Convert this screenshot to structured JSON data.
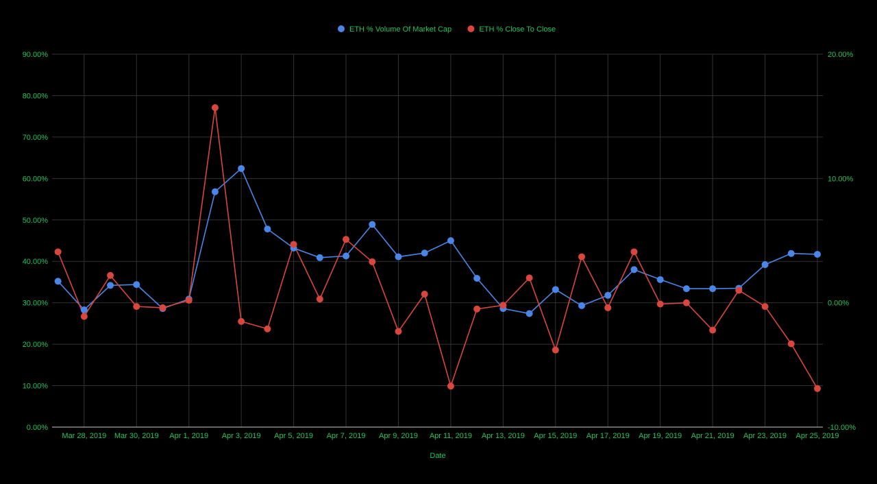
{
  "chart_data": {
    "type": "line",
    "title": "",
    "xlabel": "Date",
    "x": [
      "Mar 27, 2019",
      "Mar 28, 2019",
      "Mar 29, 2019",
      "Mar 30, 2019",
      "Mar 31, 2019",
      "Apr 1, 2019",
      "Apr 2, 2019",
      "Apr 3, 2019",
      "Apr 4, 2019",
      "Apr 5, 2019",
      "Apr 6, 2019",
      "Apr 7, 2019",
      "Apr 8, 2019",
      "Apr 9, 2019",
      "Apr 10, 2019",
      "Apr 11, 2019",
      "Apr 12, 2019",
      "Apr 13, 2019",
      "Apr 14, 2019",
      "Apr 15, 2019",
      "Apr 16, 2019",
      "Apr 17, 2019",
      "Apr 18, 2019",
      "Apr 19, 2019",
      "Apr 20, 2019",
      "Apr 21, 2019",
      "Apr 22, 2019",
      "Apr 23, 2019",
      "Apr 24, 2019",
      "Apr 25, 2019"
    ],
    "x_tick_labels": [
      "Mar 28, 2019",
      "Mar 30, 2019",
      "Apr 1, 2019",
      "Apr 3, 2019",
      "Apr 5, 2019",
      "Apr 7, 2019",
      "Apr 9, 2019",
      "Apr 11, 2019",
      "Apr 13, 2019",
      "Apr 15, 2019",
      "Apr 17, 2019",
      "Apr 19, 2019",
      "Apr 21, 2019",
      "Apr 23, 2019",
      "Apr 25, 2019"
    ],
    "y_left": {
      "ylim": [
        0,
        90
      ],
      "ticks": [
        0,
        10,
        20,
        30,
        40,
        50,
        60,
        70,
        80,
        90
      ],
      "tick_labels": [
        "0.00%",
        "10.00%",
        "20.00%",
        "30.00%",
        "40.00%",
        "50.00%",
        "60.00%",
        "70.00%",
        "80.00%",
        "90.00%"
      ]
    },
    "y_right": {
      "ylim": [
        -10,
        20
      ],
      "ticks": [
        -10,
        0,
        10,
        20
      ],
      "tick_labels": [
        "-10.00%",
        "0.00%",
        "10.00%",
        "20.00%"
      ]
    },
    "series": [
      {
        "name": "ETH % Volume Of Market Cap",
        "axis": "left",
        "color": "#4a86e8",
        "values": [
          35.2,
          28.3,
          34.2,
          34.4,
          28.6,
          30.9,
          56.8,
          62.4,
          47.8,
          43.2,
          40.9,
          41.3,
          48.9,
          41.1,
          42.0,
          45.0,
          35.9,
          28.6,
          27.4,
          33.2,
          29.3,
          31.8,
          38.0,
          35.6,
          33.4,
          33.4,
          33.5,
          39.2,
          41.9,
          41.7
        ]
      },
      {
        "name": "ETH % Close To Close",
        "axis": "right",
        "color": "#d9463e",
        "values": [
          4.1,
          -1.1,
          2.2,
          -0.3,
          -0.4,
          0.2,
          15.7,
          -1.5,
          -2.1,
          4.7,
          0.3,
          5.1,
          3.3,
          -2.3,
          0.7,
          -6.7,
          -0.5,
          -0.2,
          2.0,
          -3.8,
          3.7,
          -0.4,
          4.1,
          -0.1,
          0.0,
          -2.2,
          1.0,
          -0.3,
          -3.3,
          -6.9
        ]
      }
    ],
    "legend_position": "top",
    "grid": true,
    "colors": {
      "background": "#000000",
      "text": "#22c55e",
      "grid": "#333333",
      "axis": "#cccccc"
    }
  }
}
